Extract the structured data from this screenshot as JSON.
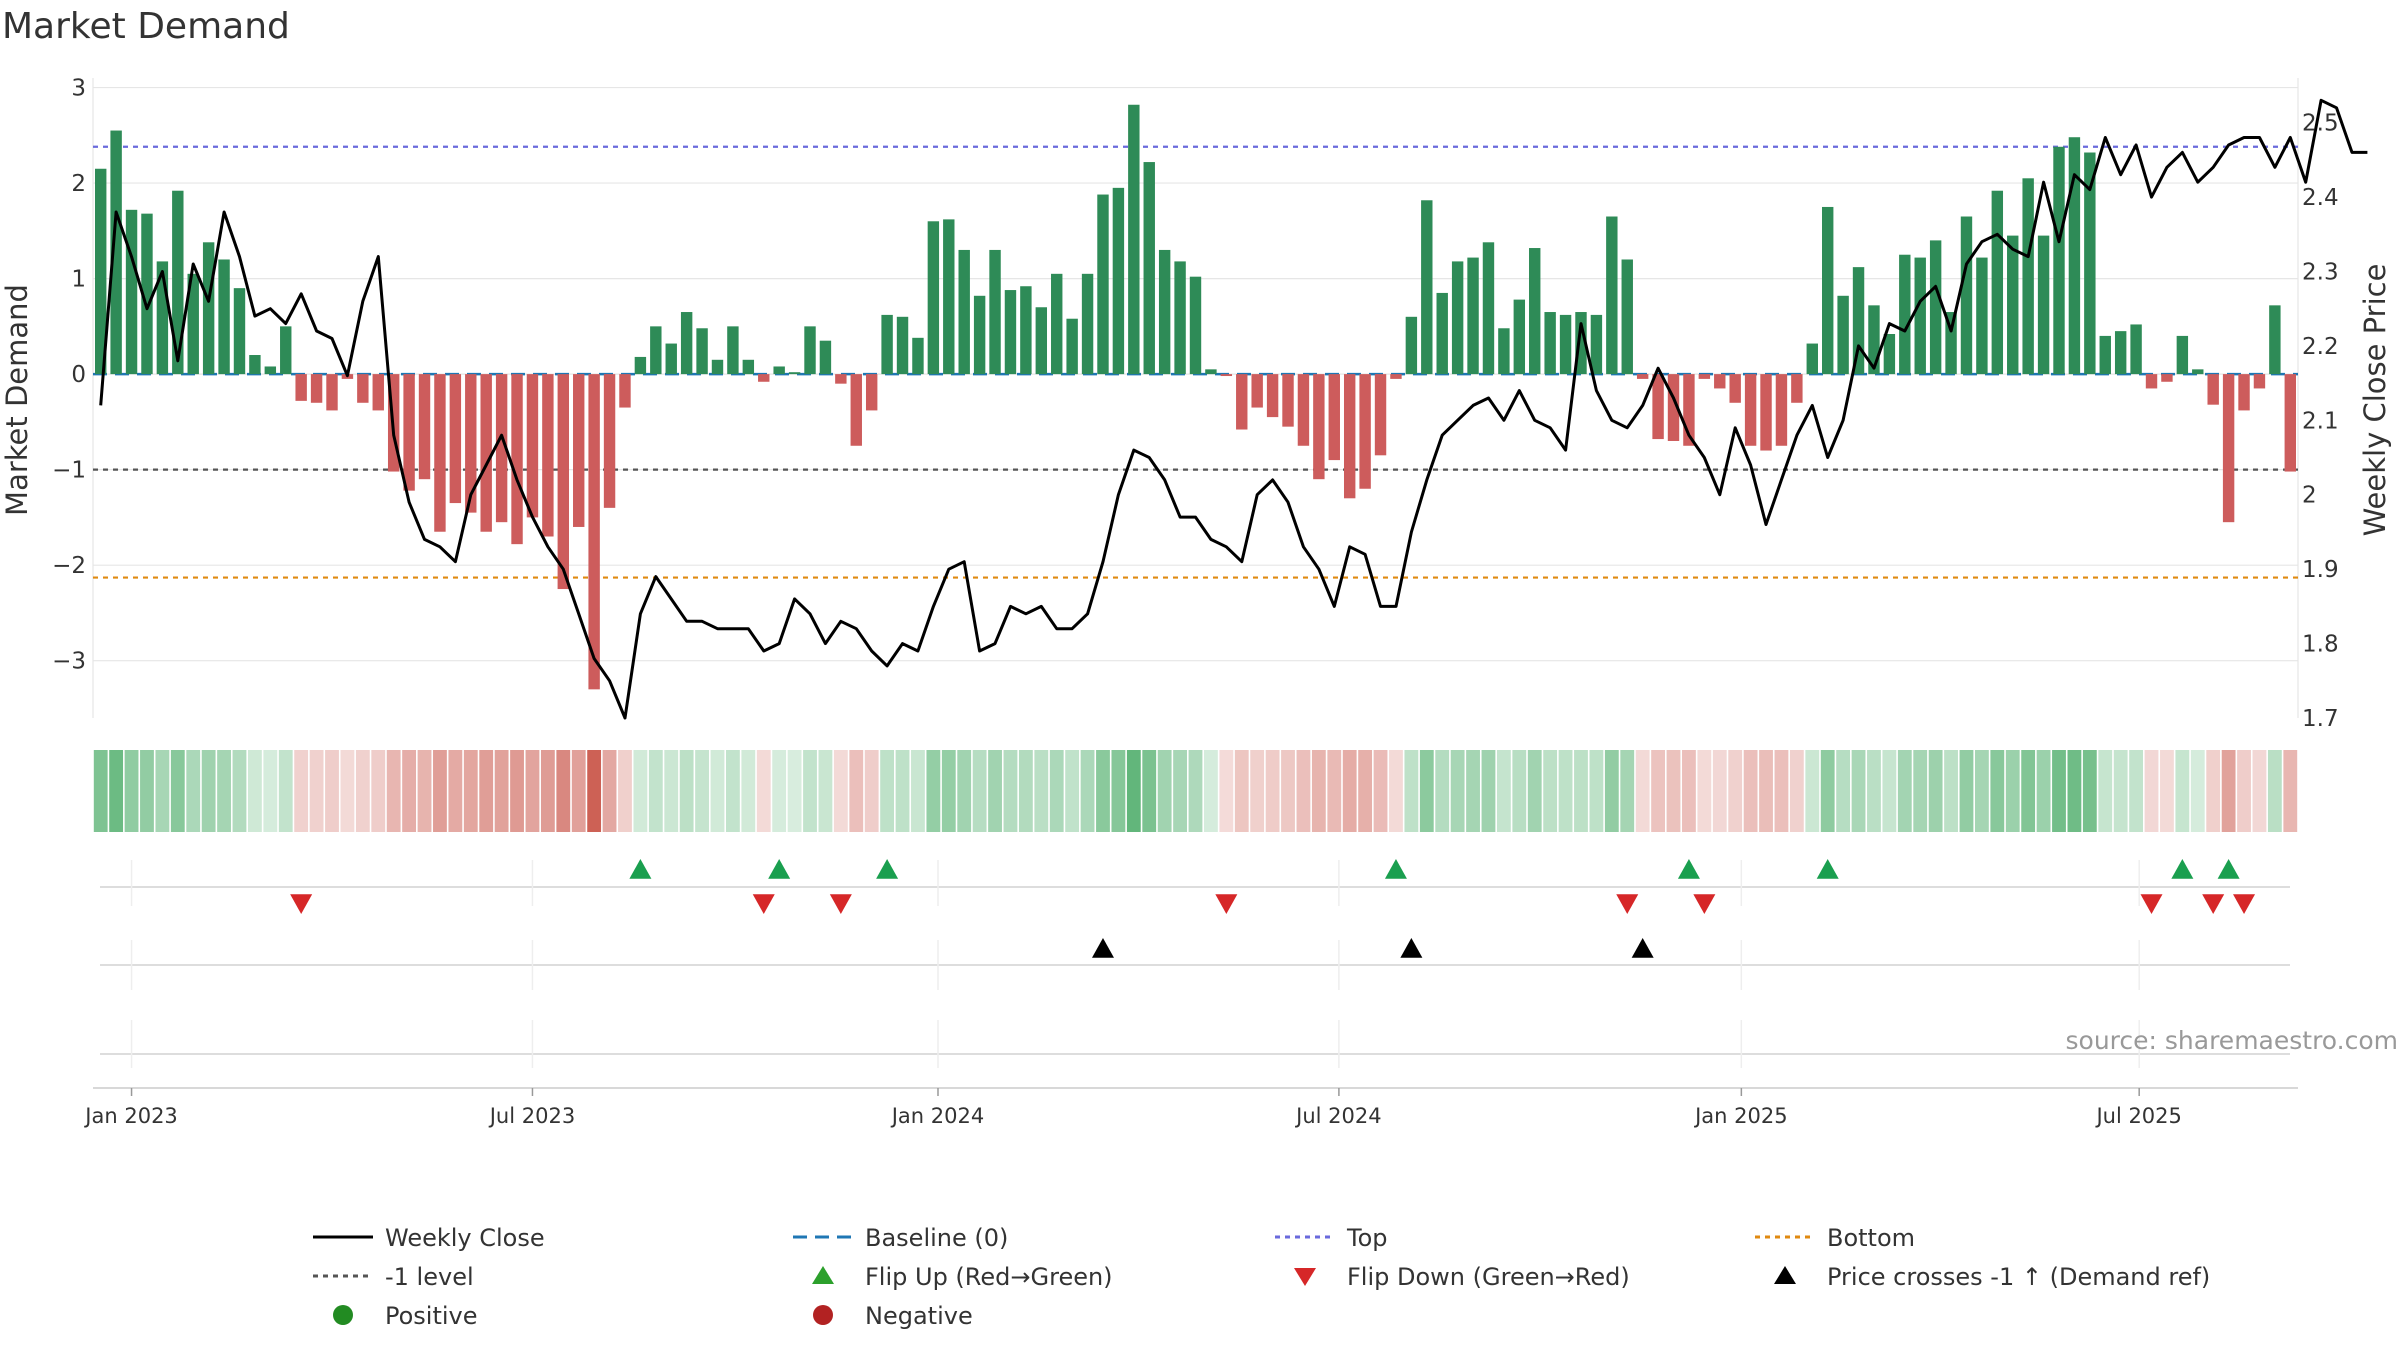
{
  "chart_data": {
    "type": "bar",
    "title": "Market Demand",
    "ylabel": "Market Demand",
    "y2label": "Weekly Close Price",
    "ylim": [
      -3.6,
      3.1
    ],
    "y2lim": [
      1.7,
      2.56
    ],
    "yticks": [
      {
        "v": 3,
        "t": "3"
      },
      {
        "v": 2,
        "t": "2"
      },
      {
        "v": 1,
        "t": "1"
      },
      {
        "v": 0,
        "t": "0"
      },
      {
        "v": -1,
        "t": "−1"
      },
      {
        "v": -2,
        "t": "−2"
      },
      {
        "v": -3,
        "t": "−3"
      }
    ],
    "y2ticks": [
      {
        "v": 2.5,
        "t": "2.5"
      },
      {
        "v": 2.4,
        "t": "2.4"
      },
      {
        "v": 2.3,
        "t": "2.3"
      },
      {
        "v": 2.2,
        "t": "2.2"
      },
      {
        "v": 2.1,
        "t": "2.1"
      },
      {
        "v": 2.0,
        "t": "2"
      },
      {
        "v": 1.9,
        "t": "1.9"
      },
      {
        "v": 1.8,
        "t": "1.8"
      },
      {
        "v": 1.7,
        "t": "1.7"
      }
    ],
    "x_start_week_offset": -2,
    "x_ticks": [
      {
        "w": 0,
        "t": "Jan 2023"
      },
      {
        "w": 26,
        "t": "Jul 2023"
      },
      {
        "w": 52.3,
        "t": "Jan 2024"
      },
      {
        "w": 78.3,
        "t": "Jul 2024"
      },
      {
        "w": 104.4,
        "t": "Jan 2025"
      },
      {
        "w": 130.2,
        "t": "Jul 2025"
      }
    ],
    "reference_lines": {
      "top": 2.38,
      "bottom": -2.13,
      "minus_one": -1,
      "baseline": 0
    },
    "demand": [
      2.15,
      2.55,
      1.72,
      1.68,
      1.18,
      1.92,
      1.05,
      1.38,
      1.2,
      0.9,
      0.2,
      0.08,
      0.5,
      -0.28,
      -0.3,
      -0.38,
      -0.05,
      -0.3,
      -0.38,
      -1.02,
      -1.22,
      -1.1,
      -1.65,
      -1.35,
      -1.45,
      -1.65,
      -1.55,
      -1.78,
      -1.5,
      -1.7,
      -2.25,
      -1.6,
      -3.3,
      -1.4,
      -0.35,
      0.18,
      0.5,
      0.32,
      0.65,
      0.48,
      0.15,
      0.5,
      0.15,
      -0.08,
      0.08,
      0.02,
      0.5,
      0.35,
      -0.1,
      -0.75,
      -0.38,
      0.62,
      0.6,
      0.38,
      1.6,
      1.62,
      1.3,
      0.82,
      1.3,
      0.88,
      0.92,
      0.7,
      1.05,
      0.58,
      1.05,
      1.88,
      1.95,
      2.82,
      2.22,
      1.3,
      1.18,
      1.02,
      0.05,
      -0.02,
      -0.58,
      -0.35,
      -0.45,
      -0.55,
      -0.75,
      -1.1,
      -0.9,
      -1.3,
      -1.2,
      -0.85,
      -0.05,
      0.6,
      1.82,
      0.85,
      1.18,
      1.22,
      1.38,
      0.48,
      0.78,
      1.32,
      0.65,
      0.62,
      0.65,
      0.62,
      1.65,
      1.2,
      -0.05,
      -0.68,
      -0.7,
      -0.75,
      -0.05,
      -0.15,
      -0.3,
      -0.75,
      -0.8,
      -0.75,
      -0.3,
      0.32,
      1.75,
      0.82,
      1.12,
      0.72,
      0.42,
      1.25,
      1.22,
      1.4,
      0.65,
      1.65,
      1.22,
      1.92,
      1.45,
      2.05,
      1.45,
      2.38,
      2.48,
      2.32,
      0.4,
      0.45,
      0.52,
      -0.15,
      -0.08,
      0.4,
      0.05,
      -0.32,
      -1.55,
      -0.38,
      -0.15,
      0.72,
      -1.02
    ],
    "close": [
      2.12,
      2.38,
      2.32,
      2.25,
      2.3,
      2.18,
      2.31,
      2.26,
      2.38,
      2.32,
      2.24,
      2.25,
      2.23,
      2.27,
      2.22,
      2.21,
      2.16,
      2.26,
      2.32,
      2.08,
      1.99,
      1.94,
      1.93,
      1.91,
      2.0,
      2.04,
      2.08,
      2.02,
      1.97,
      1.93,
      1.9,
      1.84,
      1.78,
      1.75,
      1.7,
      1.84,
      1.89,
      1.86,
      1.83,
      1.83,
      1.82,
      1.82,
      1.82,
      1.79,
      1.8,
      1.86,
      1.84,
      1.8,
      1.83,
      1.82,
      1.79,
      1.77,
      1.8,
      1.79,
      1.85,
      1.9,
      1.91,
      1.79,
      1.8,
      1.85,
      1.84,
      1.85,
      1.82,
      1.82,
      1.84,
      1.91,
      2.0,
      2.06,
      2.05,
      2.02,
      1.97,
      1.97,
      1.94,
      1.93,
      1.91,
      2.0,
      2.02,
      1.99,
      1.93,
      1.9,
      1.85,
      1.93,
      1.92,
      1.85,
      1.85,
      1.95,
      2.02,
      2.08,
      2.1,
      2.12,
      2.13,
      2.1,
      2.14,
      2.1,
      2.09,
      2.06,
      2.23,
      2.14,
      2.1,
      2.09,
      2.12,
      2.17,
      2.13,
      2.08,
      2.05,
      2.0,
      2.09,
      2.04,
      1.96,
      2.02,
      2.08,
      2.12,
      2.05,
      2.1,
      2.2,
      2.17,
      2.23,
      2.22,
      2.26,
      2.28,
      2.22,
      2.31,
      2.34,
      2.35,
      2.33,
      2.32,
      2.42,
      2.34,
      2.43,
      2.41,
      2.48,
      2.43,
      2.47,
      2.4,
      2.44,
      2.46,
      2.42,
      2.44,
      2.47,
      2.48,
      2.48,
      2.44,
      2.48,
      2.42,
      2.53,
      2.52,
      2.46,
      2.46
    ],
    "flip_up_weeks": [
      33,
      42,
      49,
      82,
      101,
      110,
      133,
      136
    ],
    "flip_down_weeks": [
      11,
      41,
      46,
      71,
      97,
      102,
      131,
      135,
      137
    ],
    "price_cross_weeks": [
      63,
      83,
      98
    ]
  },
  "source_text": "source: sharemaestro.com",
  "legend": [
    {
      "label": "Weekly Close",
      "marker": "line-solid",
      "color": "#000000"
    },
    {
      "label": "Baseline (0)",
      "marker": "line-dashed",
      "color": "#1f77b4"
    },
    {
      "label": "Top",
      "marker": "line-dotted",
      "color": "#6a6adc"
    },
    {
      "label": "Bottom",
      "marker": "line-dotted",
      "color": "#e08a10"
    },
    {
      "label": "-1 level",
      "marker": "line-dotted",
      "color": "#555555"
    },
    {
      "label": "Flip Up (Red→Green)",
      "marker": "triangle-up",
      "color": "#2ca02c"
    },
    {
      "label": "Flip Down (Green→Red)",
      "marker": "triangle-down",
      "color": "#d62728"
    },
    {
      "label": "Price crosses -1 ↑ (Demand ref)",
      "marker": "triangle-up",
      "color": "#000000"
    },
    {
      "label": "Positive",
      "marker": "circle",
      "color": "#228b22"
    },
    {
      "label": "Negative",
      "marker": "circle",
      "color": "#b22222"
    }
  ],
  "colors": {
    "positive_bar": "#2e8b57",
    "negative_bar": "#cd5c5c",
    "price_line": "#000000",
    "baseline": "#1f77b4",
    "top_line": "#6a6adc",
    "bottom_line": "#e08a10",
    "minus_one_line": "#555555",
    "flip_up": "#1a9f4f",
    "flip_down": "#d62728",
    "price_cross": "#000000"
  }
}
